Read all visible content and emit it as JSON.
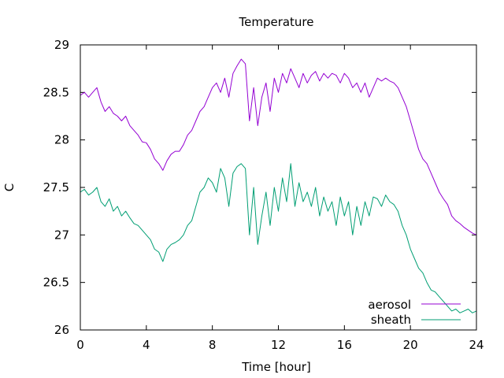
{
  "chart_data": {
    "type": "line",
    "title": "Temperature",
    "xlabel": "Time [hour]",
    "ylabel": "C",
    "xlim": [
      0,
      24
    ],
    "ylim": [
      26,
      29
    ],
    "xticks": [
      0,
      4,
      8,
      12,
      16,
      20,
      24
    ],
    "yticks": [
      26,
      26.5,
      27,
      27.5,
      28,
      28.5,
      29
    ],
    "grid": false,
    "legend": "bottom-right",
    "series": [
      {
        "name": "aerosol",
        "color": "#9400d3",
        "x": [
          0.0,
          0.25,
          0.5,
          0.75,
          1.0,
          1.25,
          1.5,
          1.75,
          2.0,
          2.25,
          2.5,
          2.75,
          3.0,
          3.25,
          3.5,
          3.75,
          4.0,
          4.25,
          4.5,
          4.75,
          5.0,
          5.25,
          5.5,
          5.75,
          6.0,
          6.25,
          6.5,
          6.75,
          7.0,
          7.25,
          7.5,
          7.75,
          8.0,
          8.25,
          8.5,
          8.75,
          9.0,
          9.25,
          9.5,
          9.75,
          10.0,
          10.25,
          10.5,
          10.75,
          11.0,
          11.25,
          11.5,
          11.75,
          12.0,
          12.25,
          12.5,
          12.75,
          13.0,
          13.25,
          13.5,
          13.75,
          14.0,
          14.25,
          14.5,
          14.75,
          15.0,
          15.25,
          15.5,
          15.75,
          16.0,
          16.25,
          16.5,
          16.75,
          17.0,
          17.25,
          17.5,
          17.75,
          18.0,
          18.25,
          18.5,
          18.75,
          19.0,
          19.25,
          19.5,
          19.75,
          20.0,
          20.25,
          20.5,
          20.75,
          21.0,
          21.25,
          21.5,
          21.75,
          22.0,
          22.25,
          22.5,
          22.75,
          23.0,
          23.25,
          23.5,
          23.75,
          24.0
        ],
        "values": [
          28.47,
          28.5,
          28.45,
          28.5,
          28.55,
          28.4,
          28.3,
          28.35,
          28.28,
          28.25,
          28.2,
          28.25,
          28.15,
          28.1,
          28.05,
          27.98,
          27.97,
          27.9,
          27.8,
          27.75,
          27.68,
          27.78,
          27.85,
          27.88,
          27.88,
          27.95,
          28.05,
          28.1,
          28.2,
          28.3,
          28.35,
          28.45,
          28.55,
          28.6,
          28.5,
          28.65,
          28.45,
          28.7,
          28.78,
          28.85,
          28.8,
          28.2,
          28.55,
          28.15,
          28.45,
          28.6,
          28.3,
          28.65,
          28.5,
          28.7,
          28.6,
          28.75,
          28.65,
          28.55,
          28.7,
          28.6,
          28.68,
          28.72,
          28.62,
          28.7,
          28.65,
          28.7,
          28.68,
          28.6,
          28.7,
          28.65,
          28.55,
          28.6,
          28.5,
          28.6,
          28.45,
          28.55,
          28.65,
          28.62,
          28.65,
          28.62,
          28.6,
          28.55,
          28.45,
          28.35,
          28.2,
          28.05,
          27.9,
          27.8,
          27.75,
          27.65,
          27.55,
          27.45,
          27.38,
          27.32,
          27.2,
          27.15,
          27.12,
          27.08,
          27.05,
          27.02,
          27.0
        ]
      },
      {
        "name": "sheath",
        "color": "#009e73",
        "x": [
          0.0,
          0.25,
          0.5,
          0.75,
          1.0,
          1.25,
          1.5,
          1.75,
          2.0,
          2.25,
          2.5,
          2.75,
          3.0,
          3.25,
          3.5,
          3.75,
          4.0,
          4.25,
          4.5,
          4.75,
          5.0,
          5.25,
          5.5,
          5.75,
          6.0,
          6.25,
          6.5,
          6.75,
          7.0,
          7.25,
          7.5,
          7.75,
          8.0,
          8.25,
          8.5,
          8.75,
          9.0,
          9.25,
          9.5,
          9.75,
          10.0,
          10.25,
          10.5,
          10.75,
          11.0,
          11.25,
          11.5,
          11.75,
          12.0,
          12.25,
          12.5,
          12.75,
          13.0,
          13.25,
          13.5,
          13.75,
          14.0,
          14.25,
          14.5,
          14.75,
          15.0,
          15.25,
          15.5,
          15.75,
          16.0,
          16.25,
          16.5,
          16.75,
          17.0,
          17.25,
          17.5,
          17.75,
          18.0,
          18.25,
          18.5,
          18.75,
          19.0,
          19.25,
          19.5,
          19.75,
          20.0,
          20.25,
          20.5,
          20.75,
          21.0,
          21.25,
          21.5,
          21.75,
          22.0,
          22.25,
          22.5,
          22.75,
          23.0,
          23.25,
          23.5,
          23.75,
          24.0
        ],
        "values": [
          27.45,
          27.48,
          27.42,
          27.45,
          27.5,
          27.35,
          27.3,
          27.38,
          27.25,
          27.3,
          27.2,
          27.25,
          27.18,
          27.12,
          27.1,
          27.05,
          27.0,
          26.95,
          26.85,
          26.82,
          26.72,
          26.85,
          26.9,
          26.92,
          26.95,
          27.0,
          27.1,
          27.15,
          27.3,
          27.45,
          27.5,
          27.6,
          27.55,
          27.45,
          27.7,
          27.6,
          27.3,
          27.65,
          27.72,
          27.75,
          27.7,
          27.0,
          27.5,
          26.9,
          27.2,
          27.45,
          27.1,
          27.5,
          27.25,
          27.6,
          27.35,
          27.75,
          27.3,
          27.55,
          27.35,
          27.45,
          27.3,
          27.5,
          27.2,
          27.4,
          27.25,
          27.35,
          27.1,
          27.4,
          27.2,
          27.35,
          27.0,
          27.3,
          27.1,
          27.35,
          27.2,
          27.4,
          27.38,
          27.3,
          27.42,
          27.35,
          27.32,
          27.25,
          27.1,
          27.0,
          26.85,
          26.75,
          26.65,
          26.6,
          26.5,
          26.42,
          26.4,
          26.35,
          26.3,
          26.25,
          26.2,
          26.22,
          26.18,
          26.2,
          26.22,
          26.18,
          26.2
        ]
      }
    ]
  }
}
